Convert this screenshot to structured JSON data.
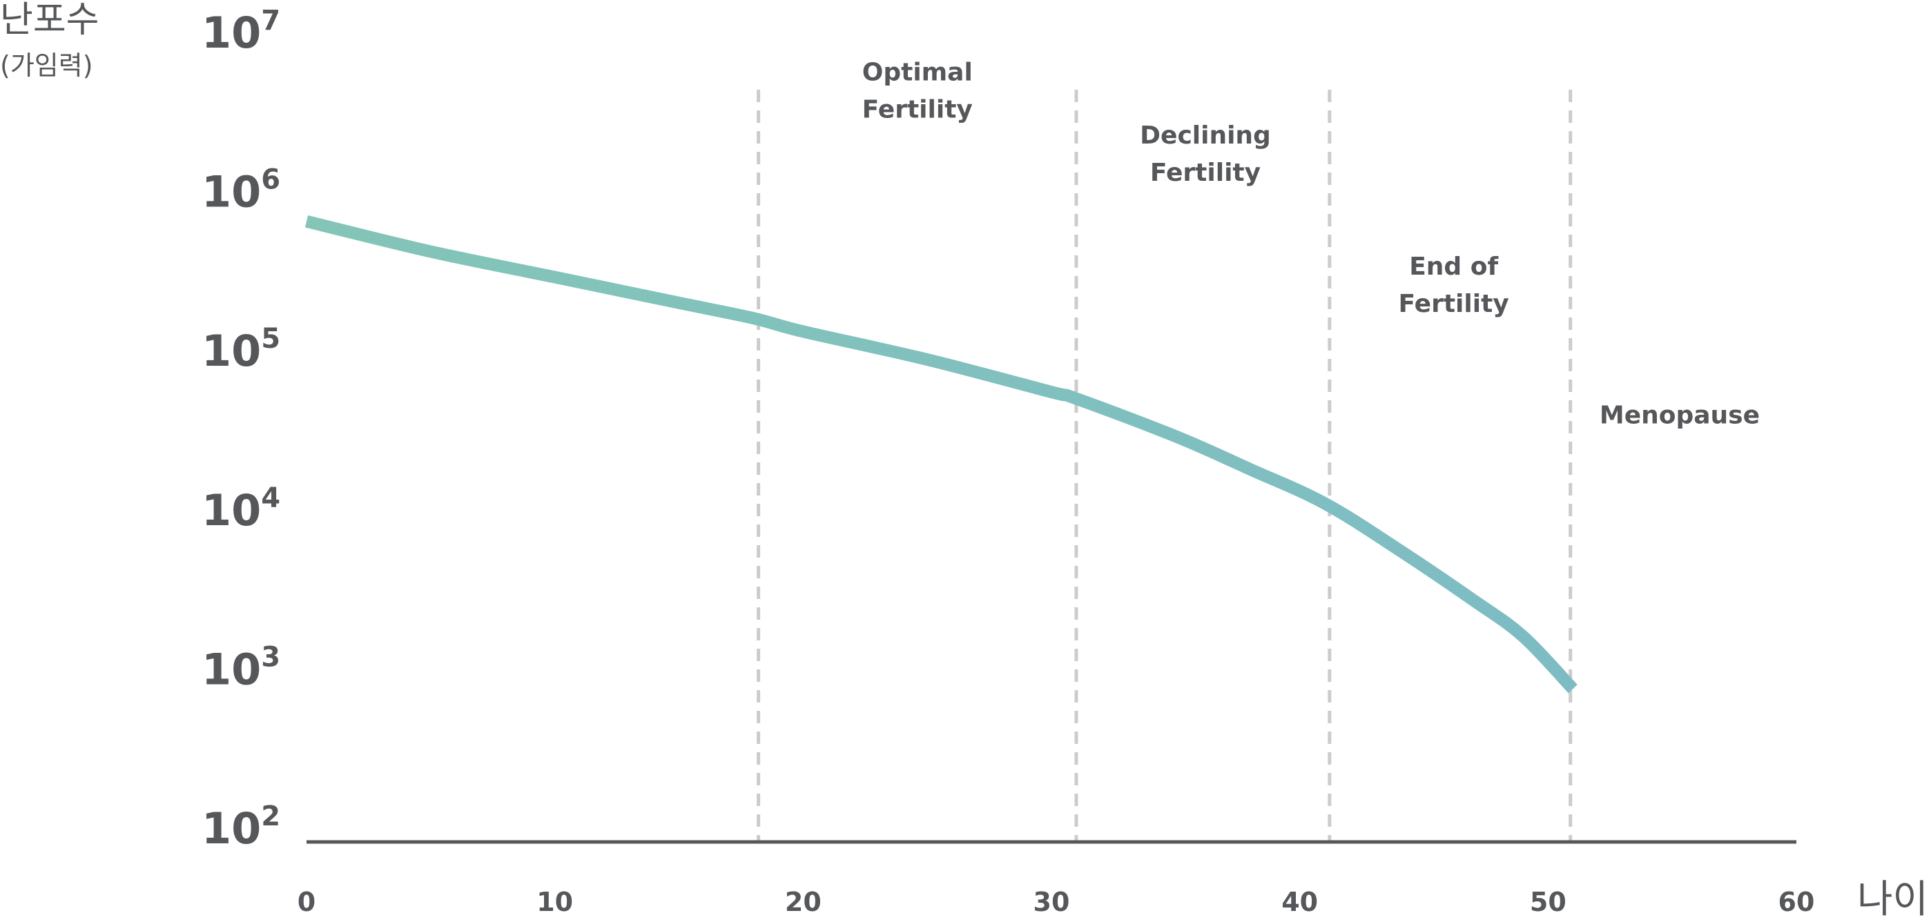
{
  "chart_data": {
    "type": "line",
    "ylabel": "난포수",
    "ylabel_sub": "(가임력)",
    "xlabel": "나이",
    "xlim": [
      0,
      60
    ],
    "x_ticks": [
      0,
      10,
      20,
      30,
      40,
      50,
      60
    ],
    "y_scale": "log",
    "ylim": [
      100,
      10000000
    ],
    "y_ticks": [
      {
        "base": "10",
        "exp": "2",
        "value": 100
      },
      {
        "base": "10",
        "exp": "3",
        "value": 1000
      },
      {
        "base": "10",
        "exp": "4",
        "value": 10000
      },
      {
        "base": "10",
        "exp": "5",
        "value": 100000
      },
      {
        "base": "10",
        "exp": "6",
        "value": 1000000
      },
      {
        "base": "10",
        "exp": "7",
        "value": 10000000
      }
    ],
    "grid": false,
    "series": [
      {
        "color": "#84c5b7",
        "color_end": "#7ebcc4",
        "points": [
          {
            "x": 0,
            "y": 650000
          },
          {
            "x": 5,
            "y": 420000
          },
          {
            "x": 10,
            "y": 290000
          },
          {
            "x": 15,
            "y": 200000
          },
          {
            "x": 18,
            "y": 160000
          },
          {
            "x": 20,
            "y": 132000
          },
          {
            "x": 25,
            "y": 88000
          },
          {
            "x": 30,
            "y": 55000
          },
          {
            "x": 31,
            "y": 50000
          },
          {
            "x": 35,
            "y": 29000
          },
          {
            "x": 38,
            "y": 18000
          },
          {
            "x": 41,
            "y": 11000
          },
          {
            "x": 44,
            "y": 5600
          },
          {
            "x": 47,
            "y": 2700
          },
          {
            "x": 49,
            "y": 1600
          },
          {
            "x": 51,
            "y": 750
          }
        ]
      }
    ],
    "reference_lines": [
      {
        "x": 18.2,
        "color": "#cccccc",
        "style": "dashed"
      },
      {
        "x": 31,
        "color": "#cccccc",
        "style": "dashed"
      },
      {
        "x": 41.2,
        "color": "#cccccc",
        "style": "dashed"
      },
      {
        "x": 50.9,
        "color": "#cccccc",
        "style": "dashed"
      }
    ],
    "annotations": [
      {
        "lines": [
          "Optimal",
          "Fertility"
        ],
        "x": 24.6,
        "y": 5000000
      },
      {
        "lines": [
          "Declining",
          "Fertility"
        ],
        "x": 36.2,
        "y": 2000000
      },
      {
        "lines": [
          "End of",
          "Fertility"
        ],
        "x": 46.2,
        "y": 300000
      },
      {
        "lines": [
          "Menopause"
        ],
        "x": 55.3,
        "y": 35000
      }
    ],
    "colors": {
      "text": "#55575a",
      "axis": "#55575a",
      "reference": "#cccccc"
    }
  }
}
